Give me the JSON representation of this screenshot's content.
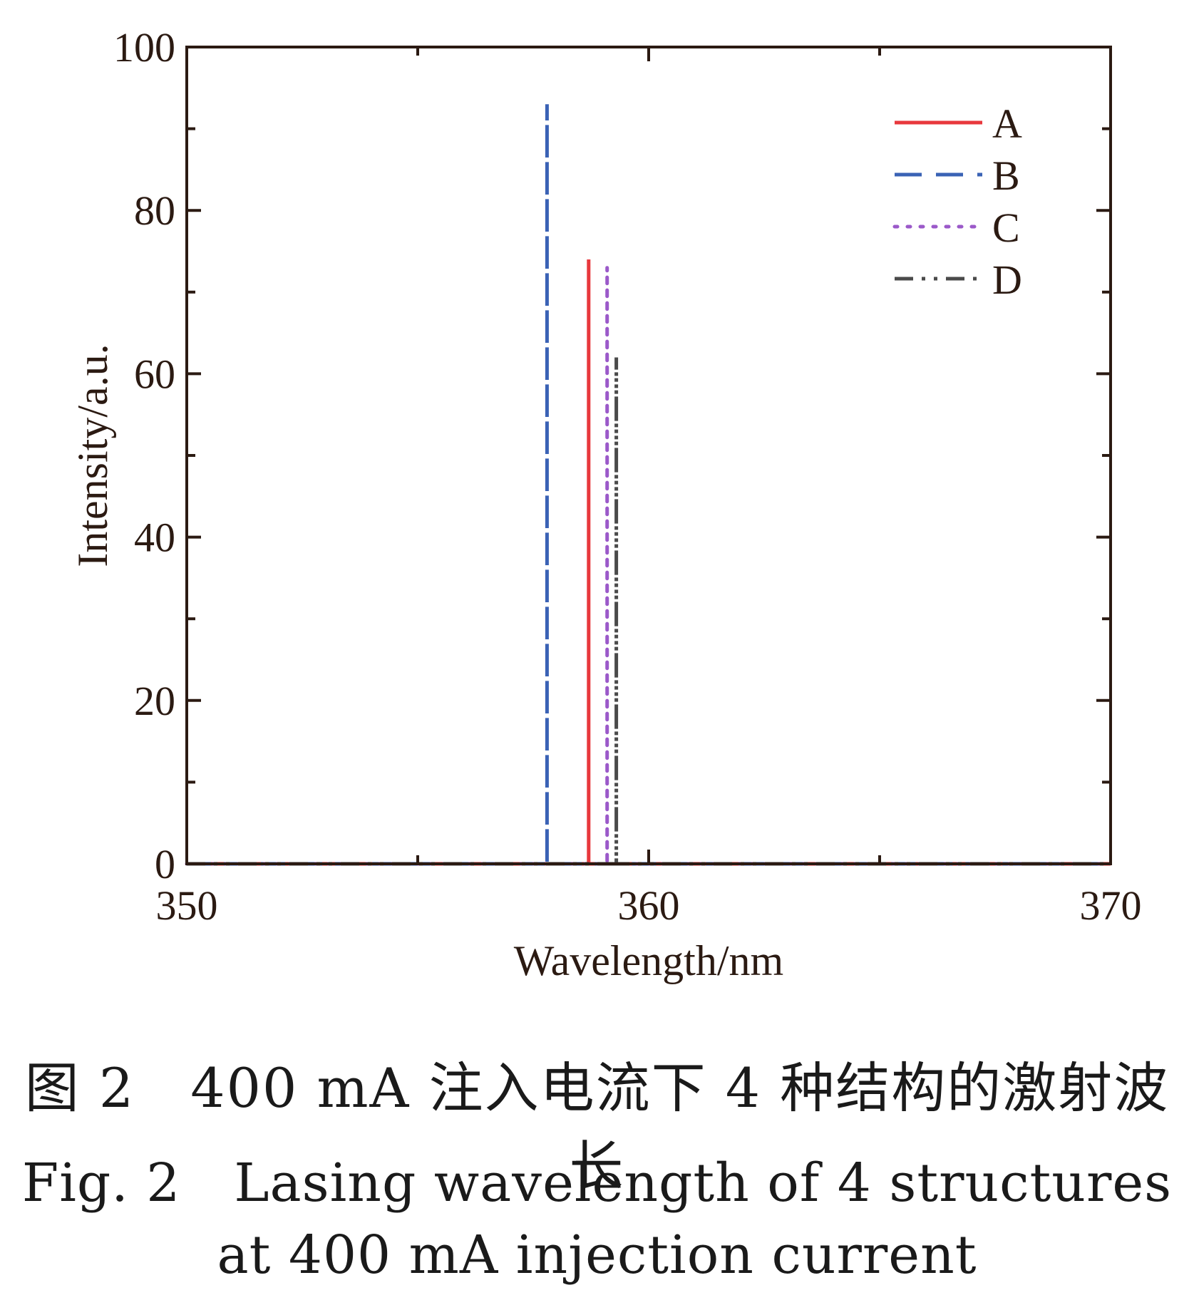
{
  "chart_data": {
    "type": "line",
    "title": "",
    "xlabel": "Wavelength/nm",
    "ylabel": "Intensity/a.u.",
    "xlim": [
      350,
      370
    ],
    "ylim": [
      0,
      100
    ],
    "xticks": [
      350,
      360,
      370
    ],
    "yticks": [
      0,
      20,
      40,
      60,
      80,
      100
    ],
    "grid": false,
    "legend_position": "top-right",
    "series": [
      {
        "name": "A",
        "color": "#e8383d",
        "style": "solid",
        "x": [
          350,
          358.7,
          358.7,
          358.7,
          370
        ],
        "y": [
          0,
          0,
          74,
          0,
          0
        ]
      },
      {
        "name": "B",
        "color": "#3a62b5",
        "style": "dashed",
        "x": [
          350,
          357.8,
          357.8,
          357.8,
          370
        ],
        "y": [
          0,
          0,
          93,
          0,
          0
        ]
      },
      {
        "name": "C",
        "color": "#9b59c9",
        "style": "dotted",
        "x": [
          350,
          359.1,
          359.1,
          359.1,
          370
        ],
        "y": [
          0,
          0,
          73,
          0,
          0
        ]
      },
      {
        "name": "D",
        "color": "#4a4a4a",
        "style": "dash-dot-dot",
        "x": [
          350,
          359.3,
          359.3,
          359.3,
          370
        ],
        "y": [
          0,
          0,
          62,
          0,
          0
        ]
      }
    ]
  },
  "caption": {
    "cn": "图 2　400 mA 注入电流下 4 种结构的激射波长",
    "en_line1": "Fig. 2　Lasing wavelength of 4 structures",
    "en_line2": "at 400 mA injection current"
  }
}
